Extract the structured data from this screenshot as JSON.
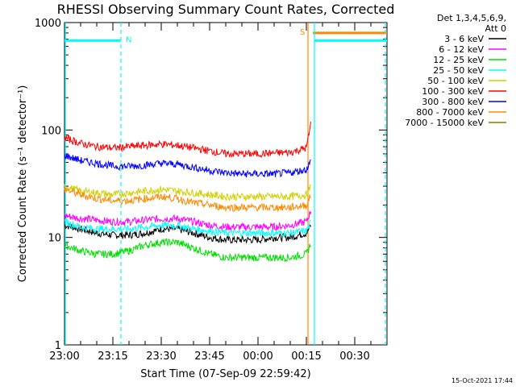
{
  "chart_data": {
    "type": "line",
    "title": "RHESSI Observing Summary Count Rates, Corrected",
    "xlabel": "Start Time (07-Sep-09 22:59:42)",
    "ylabel": "Corrected Count Rate (s⁻¹ detector⁻¹)",
    "yscale": "log",
    "ylim": [
      1,
      1000
    ],
    "y_ticks": [
      {
        "value": 1,
        "label": "1"
      },
      {
        "value": 10,
        "label": "10"
      },
      {
        "value": 100,
        "label": "100"
      },
      {
        "value": 1000,
        "label": "1000"
      }
    ],
    "xlim_minutes": [
      0,
      100
    ],
    "x_ticks": [
      {
        "minute": 0,
        "label": "23:00"
      },
      {
        "minute": 15,
        "label": "23:15"
      },
      {
        "minute": 30,
        "label": "23:30"
      },
      {
        "minute": 45,
        "label": "23:45"
      },
      {
        "minute": 60,
        "label": "00:00"
      },
      {
        "minute": 75,
        "label": "00:15"
      },
      {
        "minute": 90,
        "label": "00:30"
      }
    ],
    "legend": {
      "placement": "right",
      "header": [
        "Det 1,3,4,5,6,9,",
        "Att 0"
      ]
    },
    "series": [
      {
        "name": "3 - 6 keV",
        "color": "#000000",
        "x": [
          0,
          5,
          10,
          15,
          20,
          25,
          30,
          35,
          40,
          45,
          50,
          55,
          60,
          65,
          70,
          75,
          76.5
        ],
        "y": [
          13,
          12,
          11,
          10.5,
          10.5,
          11,
          12,
          12,
          11,
          10,
          9.5,
          9.5,
          9.5,
          10,
          10,
          11,
          13
        ]
      },
      {
        "name": "6 - 12 keV",
        "color": "#ff00ff",
        "x": [
          0,
          5,
          10,
          15,
          20,
          25,
          30,
          35,
          40,
          45,
          50,
          55,
          60,
          65,
          70,
          75,
          76.5
        ],
        "y": [
          16,
          15,
          14.5,
          14,
          14,
          14.5,
          15,
          15,
          14,
          13,
          12.5,
          12.5,
          12.5,
          12.5,
          13,
          14,
          18
        ]
      },
      {
        "name": "12 - 25 keV",
        "color": "#00e000",
        "x": [
          0,
          5,
          10,
          15,
          20,
          25,
          30,
          35,
          40,
          45,
          50,
          55,
          60,
          65,
          70,
          75,
          76.5
        ],
        "y": [
          8.5,
          7.5,
          7,
          7,
          7.5,
          8.5,
          9,
          9,
          8,
          7,
          6.5,
          6.5,
          6.5,
          6.5,
          6.5,
          7,
          9
        ]
      },
      {
        "name": "25 - 50 keV",
        "color": "#00ffff",
        "x": [
          0,
          5,
          10,
          15,
          20,
          25,
          30,
          35,
          40,
          45,
          50,
          55,
          60,
          65,
          70,
          75,
          76.5
        ],
        "y": [
          14,
          12.5,
          12,
          12,
          12,
          12.5,
          13,
          13,
          12,
          11.5,
          11,
          11,
          11,
          11,
          11,
          11.5,
          14
        ]
      },
      {
        "name": "50 - 100 keV",
        "color": "#d0d000",
        "x": [
          0,
          5,
          10,
          15,
          20,
          25,
          30,
          35,
          40,
          45,
          50,
          55,
          60,
          65,
          70,
          75,
          76.5
        ],
        "y": [
          30,
          27,
          26,
          25,
          26,
          27,
          28,
          27,
          26,
          25,
          24,
          24,
          24,
          24,
          24,
          25,
          30
        ]
      },
      {
        "name": "100 - 300 keV",
        "color": "#ff0000",
        "x": [
          0,
          5,
          10,
          15,
          20,
          25,
          30,
          35,
          40,
          45,
          50,
          55,
          60,
          65,
          70,
          75,
          76.5
        ],
        "y": [
          85,
          75,
          70,
          68,
          70,
          72,
          74,
          72,
          68,
          64,
          60,
          60,
          60,
          61,
          62,
          68,
          120
        ]
      },
      {
        "name": "300 - 800 keV",
        "color": "#0000ff",
        "x": [
          0,
          5,
          10,
          15,
          20,
          25,
          30,
          35,
          40,
          45,
          50,
          55,
          60,
          65,
          70,
          75,
          76.5
        ],
        "y": [
          58,
          52,
          49,
          46,
          46,
          47,
          49,
          48,
          45,
          42,
          40,
          39,
          39,
          39,
          40,
          43,
          52
        ]
      },
      {
        "name": "800 - 7000 keV",
        "color": "#ff8800",
        "x": [
          0,
          5,
          10,
          15,
          20,
          25,
          30,
          35,
          40,
          45,
          50,
          55,
          60,
          65,
          70,
          75,
          76.5
        ],
        "y": [
          28,
          25,
          23,
          22,
          22,
          23,
          24,
          23,
          21,
          20,
          19,
          19,
          19,
          19,
          19,
          20,
          25
        ]
      },
      {
        "name": "7000 - 15000 keV",
        "color": "#808000",
        "x": [],
        "y": []
      }
    ],
    "annotations": [
      {
        "label": "N",
        "color": "#00ffff",
        "x_minute": 17.5,
        "y": 680,
        "line_from_minute": 0,
        "line_to_minute": 17.3,
        "vertical": "dashed"
      },
      {
        "label": "S",
        "color": "#ff8800",
        "x_minute": 75.5,
        "y": 800,
        "line_from_minute": 77,
        "line_to_minute": 100,
        "vertical": "solid"
      },
      {
        "label": "",
        "color": "#00ffff",
        "x_minute": 77.5,
        "y": 680,
        "line_from_minute": 77.5,
        "line_to_minute": 100,
        "vertical": "solid"
      },
      {
        "label": "",
        "color": "#00ffff",
        "x_minute": 99.5,
        "y": 680,
        "vertical": "dashed"
      }
    ],
    "footer_timestamp": "15-Oct-2021 17:44"
  }
}
